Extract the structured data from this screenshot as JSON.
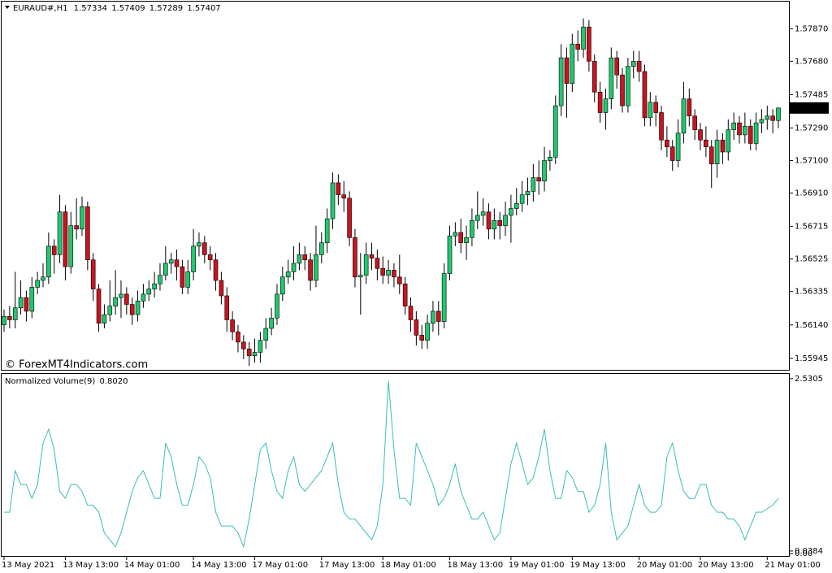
{
  "chart_data": [
    {
      "type": "candlestick",
      "title": "EURAUD#,H1",
      "annotation": "© ForexMT4Indicators.com",
      "up_color": "#22c86e",
      "down_color": "#c8141e",
      "categories": [
        "13 May 2021",
        null,
        null,
        null,
        null,
        null,
        null,
        null,
        null,
        null,
        null,
        "13 May 13:00",
        null,
        null,
        null,
        null,
        null,
        null,
        null,
        null,
        null,
        null,
        "14 May 01:00",
        null,
        null,
        null,
        null,
        null,
        null,
        null,
        null,
        null,
        null,
        null,
        "14 May 13:00",
        null,
        null,
        null,
        null,
        null,
        null,
        null,
        null,
        null,
        null,
        "17 May 01:00",
        null,
        null,
        null,
        null,
        null,
        null,
        null,
        null,
        null,
        null,
        null,
        "17 May 13:00",
        null,
        null,
        null,
        null,
        null,
        null,
        null,
        null,
        null,
        null,
        "18 May 01:00",
        null,
        null,
        null,
        null,
        null,
        null,
        null,
        null,
        null,
        null,
        null,
        "18 May 13:00",
        null,
        null,
        null,
        null,
        null,
        null,
        null,
        null,
        null,
        null,
        "19 May 01:00",
        null,
        null,
        null,
        null,
        null,
        null,
        null,
        null,
        null,
        null,
        "19 May 13:00",
        null,
        null,
        null,
        null,
        null,
        null,
        null,
        null,
        null,
        null,
        null,
        "20 May 01:00",
        null,
        null,
        null,
        null,
        null,
        null,
        null,
        null,
        null,
        null,
        "20 May 13:00",
        null,
        null,
        null,
        null,
        null,
        null,
        null,
        null,
        null,
        null,
        null,
        "21 May 01:00",
        null,
        null
      ],
      "open": [
        1.5614,
        1.5619,
        1.5617,
        1.5624,
        1.563,
        1.5622,
        1.5636,
        1.564,
        1.5642,
        1.566,
        1.5655,
        1.568,
        1.5648,
        1.5672,
        1.567,
        1.5683,
        1.5652,
        1.5635,
        1.5615,
        1.562,
        1.5625,
        1.563,
        1.5632,
        1.5626,
        1.562,
        1.5628,
        1.5632,
        1.5635,
        1.5638,
        1.5643,
        1.565,
        1.5652,
        1.5648,
        1.5636,
        1.5645,
        1.566,
        1.5662,
        1.5655,
        1.5652,
        1.564,
        1.5631,
        1.5617,
        1.561,
        1.5604,
        1.56,
        1.5596,
        1.5598,
        1.5605,
        1.5612,
        1.5618,
        1.5632,
        1.5642,
        1.5645,
        1.565,
        1.5655,
        1.5652,
        1.564,
        1.5655,
        1.5662,
        1.5676,
        1.5697,
        1.569,
        1.5688,
        1.5665,
        1.5642,
        1.5643,
        1.5655,
        1.5653,
        1.5647,
        1.5643,
        1.5646,
        1.5642,
        1.5638,
        1.5625,
        1.5617,
        1.5608,
        1.5605,
        1.5615,
        1.5622,
        1.5616,
        1.5644,
        1.5666,
        1.5668,
        1.5662,
        1.5665,
        1.5675,
        1.5678,
        1.568,
        1.567,
        1.5675,
        1.5672,
        1.5678,
        1.5682,
        1.5685,
        1.569,
        1.5692,
        1.57,
        1.5698,
        1.571,
        1.5712,
        1.5742,
        1.577,
        1.5755,
        1.5778,
        1.5775,
        1.5788,
        1.5768,
        1.575,
        1.5738,
        1.5746,
        1.577,
        1.576,
        1.5742,
        1.5765,
        1.5768,
        1.5762,
        1.5735,
        1.5744,
        1.5738,
        1.5722,
        1.5718,
        1.571,
        1.5726,
        1.5746,
        1.5736,
        1.5728,
        1.5722,
        1.5718,
        1.5708,
        1.5722,
        1.5715,
        1.5728,
        1.5732,
        1.5725,
        1.573,
        1.572,
        1.5732,
        1.5734,
        1.5736,
        1.57334
      ],
      "high": [
        1.5623,
        1.5625,
        1.5645,
        1.564,
        1.5634,
        1.5642,
        1.5645,
        1.565,
        1.5668,
        1.5664,
        1.569,
        1.5684,
        1.568,
        1.5688,
        1.5689,
        1.5686,
        1.5656,
        1.5638,
        1.5626,
        1.564,
        1.5646,
        1.564,
        1.5636,
        1.563,
        1.5634,
        1.5638,
        1.564,
        1.5645,
        1.565,
        1.566,
        1.5656,
        1.5658,
        1.5652,
        1.5652,
        1.567,
        1.5668,
        1.5666,
        1.566,
        1.5656,
        1.5645,
        1.5636,
        1.5622,
        1.5614,
        1.5608,
        1.5604,
        1.5606,
        1.561,
        1.5618,
        1.5624,
        1.5638,
        1.5648,
        1.5652,
        1.566,
        1.5662,
        1.566,
        1.5656,
        1.5672,
        1.5668,
        1.5682,
        1.5703,
        1.5702,
        1.5698,
        1.5692,
        1.567,
        1.5656,
        1.5662,
        1.5662,
        1.5658,
        1.5654,
        1.5652,
        1.565,
        1.5655,
        1.5642,
        1.563,
        1.5622,
        1.5614,
        1.562,
        1.5628,
        1.5628,
        1.565,
        1.5672,
        1.5674,
        1.5676,
        1.5672,
        1.5682,
        1.5692,
        1.5688,
        1.5685,
        1.5682,
        1.568,
        1.5686,
        1.569,
        1.5694,
        1.5698,
        1.57,
        1.5708,
        1.571,
        1.5718,
        1.5716,
        1.5748,
        1.5778,
        1.5776,
        1.5784,
        1.5786,
        1.5793,
        1.5792,
        1.5772,
        1.5756,
        1.5752,
        1.5776,
        1.5774,
        1.5764,
        1.577,
        1.5774,
        1.5774,
        1.5766,
        1.575,
        1.5748,
        1.5742,
        1.573,
        1.5722,
        1.5734,
        1.5756,
        1.5752,
        1.574,
        1.5732,
        1.573,
        1.5722,
        1.5728,
        1.5726,
        1.5734,
        1.5738,
        1.5736,
        1.5738,
        1.5734,
        1.5738,
        1.574,
        1.5742,
        1.574,
        1.57409
      ],
      "low": [
        1.561,
        1.5612,
        1.5612,
        1.562,
        1.5616,
        1.5618,
        1.5632,
        1.5636,
        1.5638,
        1.5644,
        1.565,
        1.564,
        1.5644,
        1.5664,
        1.5666,
        1.5646,
        1.5628,
        1.561,
        1.5612,
        1.5616,
        1.562,
        1.5618,
        1.562,
        1.5614,
        1.5616,
        1.5624,
        1.5628,
        1.563,
        1.5634,
        1.564,
        1.5644,
        1.564,
        1.5632,
        1.5632,
        1.564,
        1.5654,
        1.565,
        1.5646,
        1.5634,
        1.5626,
        1.561,
        1.5605,
        1.5598,
        1.5594,
        1.559,
        1.5592,
        1.5592,
        1.56,
        1.5608,
        1.5614,
        1.5628,
        1.5638,
        1.564,
        1.5646,
        1.5646,
        1.5634,
        1.5636,
        1.565,
        1.5656,
        1.567,
        1.5684,
        1.568,
        1.566,
        1.5636,
        1.562,
        1.5638,
        1.5646,
        1.564,
        1.5638,
        1.5638,
        1.5636,
        1.5632,
        1.562,
        1.561,
        1.5602,
        1.56,
        1.56,
        1.561,
        1.5608,
        1.5612,
        1.564,
        1.566,
        1.5656,
        1.5652,
        1.566,
        1.567,
        1.5672,
        1.5664,
        1.5664,
        1.5664,
        1.5666,
        1.5662,
        1.5678,
        1.568,
        1.5684,
        1.5686,
        1.569,
        1.5692,
        1.5704,
        1.5708,
        1.5736,
        1.5735,
        1.575,
        1.5768,
        1.577,
        1.5762,
        1.5744,
        1.5732,
        1.5728,
        1.574,
        1.5752,
        1.5738,
        1.5738,
        1.5758,
        1.5756,
        1.573,
        1.573,
        1.573,
        1.5716,
        1.5712,
        1.5704,
        1.5706,
        1.572,
        1.573,
        1.5722,
        1.5716,
        1.5712,
        1.5694,
        1.57,
        1.5708,
        1.571,
        1.5722,
        1.572,
        1.572,
        1.5716,
        1.5716,
        1.5726,
        1.5728,
        1.5726,
        1.57289
      ],
      "close": [
        1.5619,
        1.5617,
        1.5624,
        1.563,
        1.5622,
        1.5636,
        1.564,
        1.5642,
        1.566,
        1.5655,
        1.568,
        1.5648,
        1.5672,
        1.567,
        1.5683,
        1.5652,
        1.5635,
        1.5615,
        1.562,
        1.5625,
        1.563,
        1.5632,
        1.5626,
        1.562,
        1.5628,
        1.5632,
        1.5635,
        1.5638,
        1.5643,
        1.565,
        1.5652,
        1.5648,
        1.5636,
        1.5645,
        1.566,
        1.5662,
        1.5655,
        1.5652,
        1.564,
        1.5631,
        1.5617,
        1.561,
        1.5604,
        1.56,
        1.5596,
        1.5598,
        1.5605,
        1.5612,
        1.5618,
        1.5632,
        1.5642,
        1.5645,
        1.565,
        1.5655,
        1.5652,
        1.564,
        1.5655,
        1.5662,
        1.5676,
        1.5697,
        1.569,
        1.5688,
        1.5665,
        1.5642,
        1.5643,
        1.5655,
        1.5653,
        1.5647,
        1.5643,
        1.5646,
        1.5642,
        1.5638,
        1.5625,
        1.5617,
        1.5608,
        1.5605,
        1.5615,
        1.5622,
        1.5616,
        1.5644,
        1.5666,
        1.5668,
        1.5662,
        1.5665,
        1.5675,
        1.5678,
        1.568,
        1.567,
        1.5675,
        1.5672,
        1.5678,
        1.5682,
        1.5685,
        1.569,
        1.5692,
        1.57,
        1.5698,
        1.571,
        1.5712,
        1.5742,
        1.577,
        1.5755,
        1.5778,
        1.5775,
        1.5788,
        1.5768,
        1.575,
        1.5738,
        1.5746,
        1.577,
        1.576,
        1.5742,
        1.5765,
        1.5768,
        1.5762,
        1.5735,
        1.5744,
        1.5738,
        1.5722,
        1.5718,
        1.571,
        1.5726,
        1.5746,
        1.5736,
        1.5728,
        1.5722,
        1.5718,
        1.5708,
        1.5722,
        1.5715,
        1.5728,
        1.5732,
        1.5725,
        1.573,
        1.572,
        1.5732,
        1.5734,
        1.5736,
        1.57334,
        1.57407
      ],
      "ylim": [
        1.55878,
        1.58028
      ],
      "yticks": [
        {
          "value": 1.5787,
          "label": "1.57870"
        },
        {
          "value": 1.5768,
          "label": "1.57680"
        },
        1.57485,
        {
          "value": 1.5729,
          "label": "1.57290"
        },
        {
          "value": 1.571,
          "label": "1.57100"
        },
        {
          "value": 1.5691,
          "label": "1.56910"
        },
        1.56715,
        1.56525,
        1.56335,
        {
          "value": 1.5614,
          "label": "1.56140"
        },
        1.55945
      ]
    },
    {
      "type": "line",
      "title": "Normalized Volume(9)",
      "current": {
        "value": 0.802,
        "label": "0.8020"
      },
      "color": "#3cbcbc",
      "values": [
        0.6,
        0.6,
        1.2,
        1.0,
        1.0,
        0.8,
        1.0,
        1.6,
        1.8,
        1.5,
        0.9,
        0.8,
        1.0,
        1.0,
        0.9,
        0.7,
        0.7,
        0.6,
        0.3,
        0.2,
        0.1,
        0.3,
        0.6,
        0.9,
        1.1,
        1.2,
        1.0,
        0.8,
        0.8,
        1.6,
        1.4,
        1.0,
        0.7,
        0.7,
        1.0,
        1.4,
        1.3,
        1.1,
        0.6,
        0.4,
        0.4,
        0.4,
        0.3,
        0.1,
        0.5,
        1.0,
        1.5,
        1.6,
        1.2,
        0.9,
        0.8,
        1.2,
        1.4,
        1.0,
        0.9,
        1.0,
        1.1,
        1.2,
        1.4,
        1.6,
        1.0,
        0.6,
        0.5,
        0.5,
        0.4,
        0.3,
        0.2,
        0.4,
        1.0,
        2.5,
        1.5,
        0.8,
        0.8,
        0.7,
        1.6,
        1.4,
        1.2,
        1.0,
        0.7,
        0.8,
        1.0,
        1.3,
        0.9,
        0.7,
        0.5,
        0.5,
        0.6,
        0.4,
        0.2,
        0.3,
        0.8,
        1.3,
        1.6,
        1.3,
        1.0,
        1.1,
        1.4,
        1.8,
        1.2,
        0.8,
        0.8,
        1.2,
        1.1,
        0.9,
        0.9,
        0.6,
        0.7,
        1.0,
        1.6,
        0.6,
        0.2,
        0.3,
        0.4,
        0.7,
        1.0,
        0.7,
        0.6,
        0.6,
        0.7,
        1.4,
        1.6,
        1.2,
        0.9,
        0.8,
        0.8,
        1.0,
        1.0,
        0.7,
        0.6,
        0.6,
        0.5,
        0.5,
        0.4,
        0.2,
        0.4,
        0.6,
        0.6,
        0.65,
        0.7,
        0.802
      ],
      "ylim": [
        -0.045,
        2.6
      ],
      "yticks": [
        2.5305,
        0.0384,
        {
          "value": 0,
          "label": "0.00"
        }
      ]
    }
  ]
}
